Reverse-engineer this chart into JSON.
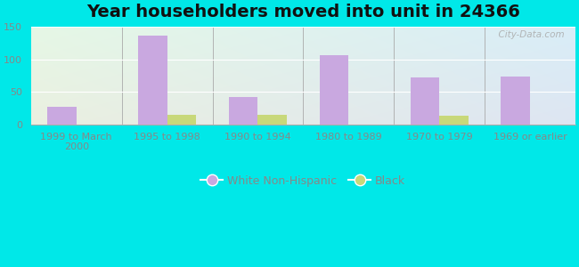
{
  "title": "Year householders moved into unit in 24366",
  "categories": [
    "1999 to March\n2000",
    "1995 to 1998",
    "1990 to 1994",
    "1980 to 1989",
    "1970 to 1979",
    "1969 or earlier"
  ],
  "white_values": [
    27,
    136,
    42,
    107,
    72,
    74
  ],
  "black_values": [
    0,
    14,
    14,
    0,
    13,
    0
  ],
  "white_color": "#c9a8e0",
  "black_color": "#c8d87a",
  "bg_outer": "#00e8e8",
  "bg_plot_topleft": "#e2f5e2",
  "bg_plot_topright": "#c8eef0",
  "bg_plot_bottomleft": "#d8f0d8",
  "bg_plot_bottomright": "#c0e8ec",
  "ylim": [
    0,
    150
  ],
  "yticks": [
    0,
    50,
    100,
    150
  ],
  "bar_width": 0.32,
  "watermark": "  City-Data.com",
  "legend_labels": [
    "White Non-Hispanic",
    "Black"
  ],
  "title_fontsize": 14,
  "tick_fontsize": 8,
  "legend_fontsize": 9,
  "axis_color": "#888888"
}
